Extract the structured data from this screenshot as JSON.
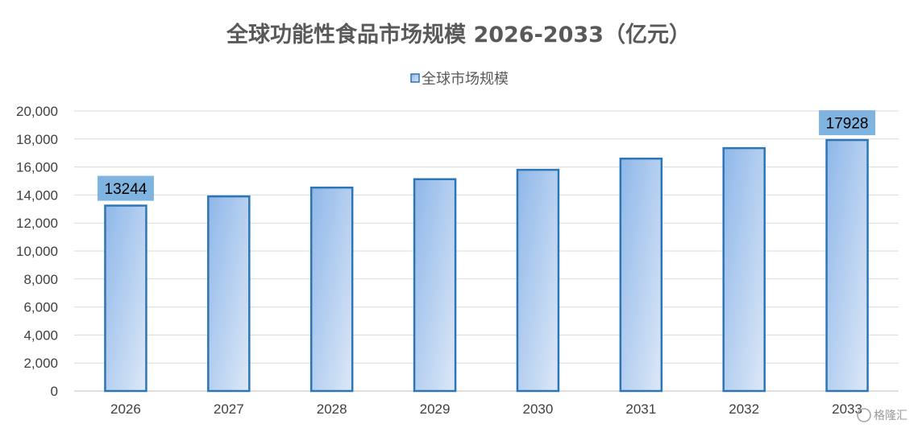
{
  "chart_data": {
    "type": "bar",
    "title": "全球功能性食品市场规模 2026-2033（亿元）",
    "categories": [
      "2026",
      "2027",
      "2028",
      "2029",
      "2030",
      "2031",
      "2032",
      "2033"
    ],
    "series": [
      {
        "name": "全球市场规模",
        "values": [
          13244,
          13900,
          14530,
          15130,
          15800,
          16600,
          17350,
          17928
        ],
        "color": "#2e75b6",
        "fill_light": "#dde8f7",
        "fill_dark": "#8fb7e9"
      }
    ],
    "data_labels": [
      {
        "index": 0,
        "text": "13244"
      },
      {
        "index": 7,
        "text": "17928"
      }
    ],
    "label_bg": "#7fb3e0",
    "ylim": [
      0,
      20000
    ],
    "yticks": [
      0,
      2000,
      4000,
      6000,
      8000,
      10000,
      12000,
      14000,
      16000,
      18000,
      20000
    ],
    "ytick_labels": [
      "0",
      "2,000",
      "4,000",
      "6,000",
      "8,000",
      "10,000",
      "12,000",
      "14,000",
      "16,000",
      "18,000",
      "20,000"
    ],
    "grid": true,
    "legend_position": "top-center"
  },
  "watermark": "格隆汇"
}
